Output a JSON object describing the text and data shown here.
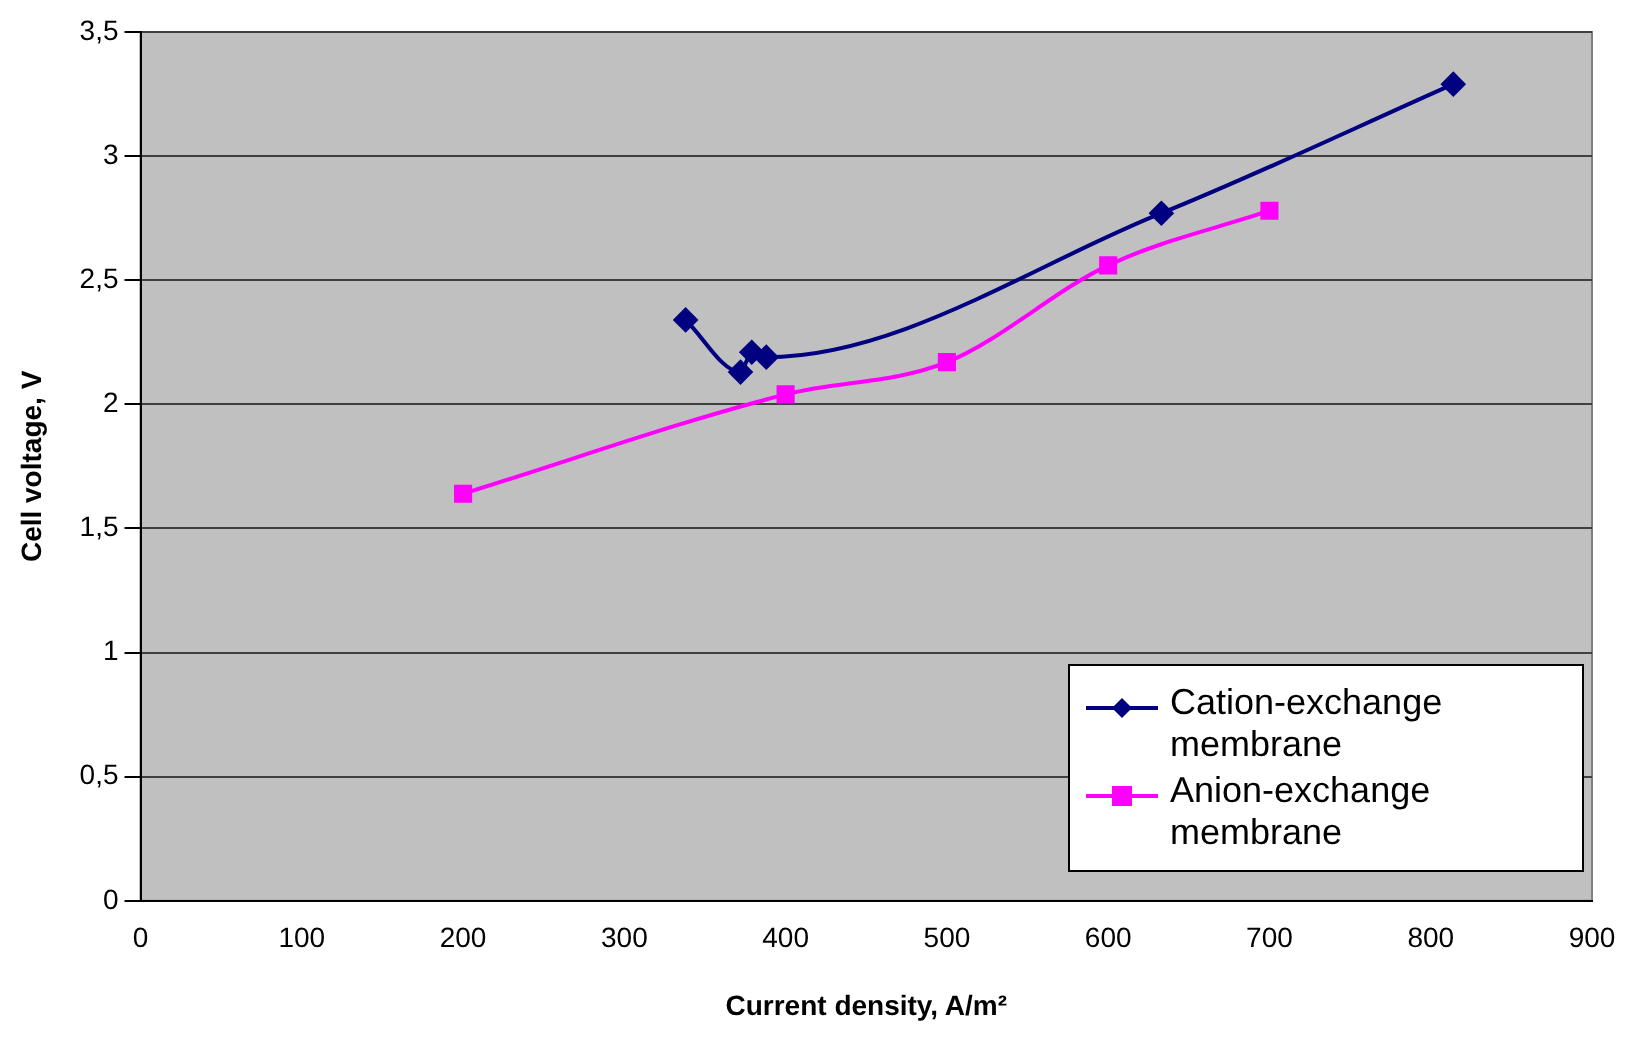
{
  "chart_data": {
    "type": "line",
    "xlabel": "Current density, A/m²",
    "ylabel": "Cell voltage, V",
    "xlim": [
      0,
      900
    ],
    "xticks": [
      0,
      100,
      200,
      300,
      400,
      500,
      600,
      700,
      800,
      900
    ],
    "ylim": [
      0,
      3.5
    ],
    "yticks": [
      0,
      {
        "value": 0.5,
        "label": "0,5"
      },
      1,
      {
        "value": 1.5,
        "label": "1,5"
      },
      2,
      {
        "value": 2.5,
        "label": "2,5"
      },
      3,
      {
        "value": 3.5,
        "label": "3,5"
      }
    ],
    "grid": "y",
    "legend": "bottom right",
    "series": [
      {
        "name": "Cation-exchange membrane",
        "color": "#000080",
        "marker": "diamond",
        "x": [
          338,
          372,
          379,
          388,
          633,
          814
        ],
        "values": [
          2.34,
          2.13,
          2.21,
          2.19,
          2.77,
          3.29
        ]
      },
      {
        "name": "Anion-exchange membrane",
        "color": "#ff00ff",
        "marker": "square",
        "x": [
          200,
          400,
          500,
          600,
          700
        ],
        "values": [
          1.64,
          2.04,
          2.17,
          2.56,
          2.78
        ]
      }
    ]
  }
}
